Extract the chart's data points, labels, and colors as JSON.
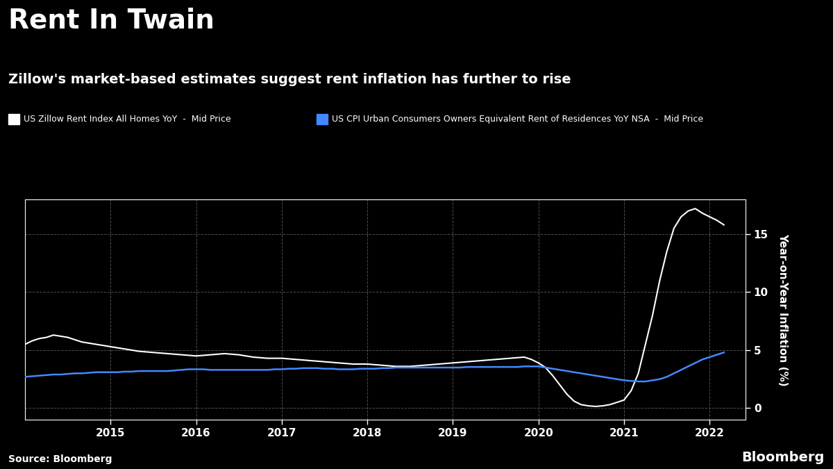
{
  "title": "Rent In Twain",
  "subtitle": "Zillow's market-based estimates suggest rent inflation has further to rise",
  "source": "Source: Bloomberg",
  "bloomberg_label": "Bloomberg",
  "ylabel": "Year-on-Year Inflation (%)",
  "legend_zillow": "US Zillow Rent Index All Homes YoY  -  Mid Price",
  "legend_cpi": "US CPI Urban Consumers Owners Equivalent Rent of Residences YoY NSA  -  Mid Price",
  "bg_color": "#000000",
  "text_color": "#ffffff",
  "grid_color": "#555555",
  "zillow_color": "#ffffff",
  "cpi_color": "#4488ff",
  "ylim": [
    -1,
    18
  ],
  "yticks": [
    0,
    5,
    10,
    15
  ],
  "zillow_x": [
    2014.0,
    2014.083,
    2014.167,
    2014.25,
    2014.333,
    2014.417,
    2014.5,
    2014.583,
    2014.667,
    2014.75,
    2014.833,
    2014.917,
    2015.0,
    2015.083,
    2015.167,
    2015.25,
    2015.333,
    2015.417,
    2015.5,
    2015.583,
    2015.667,
    2015.75,
    2015.833,
    2015.917,
    2016.0,
    2016.083,
    2016.167,
    2016.25,
    2016.333,
    2016.417,
    2016.5,
    2016.583,
    2016.667,
    2016.75,
    2016.833,
    2016.917,
    2017.0,
    2017.083,
    2017.167,
    2017.25,
    2017.333,
    2017.417,
    2017.5,
    2017.583,
    2017.667,
    2017.75,
    2017.833,
    2017.917,
    2018.0,
    2018.083,
    2018.167,
    2018.25,
    2018.333,
    2018.417,
    2018.5,
    2018.583,
    2018.667,
    2018.75,
    2018.833,
    2018.917,
    2019.0,
    2019.083,
    2019.167,
    2019.25,
    2019.333,
    2019.417,
    2019.5,
    2019.583,
    2019.667,
    2019.75,
    2019.833,
    2019.917,
    2020.0,
    2020.083,
    2020.167,
    2020.25,
    2020.333,
    2020.417,
    2020.5,
    2020.583,
    2020.667,
    2020.75,
    2020.833,
    2020.917,
    2021.0,
    2021.083,
    2021.167,
    2021.25,
    2021.333,
    2021.417,
    2021.5,
    2021.583,
    2021.667,
    2021.75,
    2021.833,
    2021.917,
    2022.0,
    2022.083,
    2022.167
  ],
  "zillow_y": [
    5.5,
    5.8,
    6.0,
    6.1,
    6.3,
    6.2,
    6.1,
    5.9,
    5.7,
    5.6,
    5.5,
    5.4,
    5.3,
    5.2,
    5.1,
    5.0,
    4.9,
    4.85,
    4.8,
    4.75,
    4.7,
    4.65,
    4.6,
    4.55,
    4.5,
    4.55,
    4.6,
    4.65,
    4.7,
    4.65,
    4.6,
    4.5,
    4.4,
    4.35,
    4.3,
    4.3,
    4.3,
    4.25,
    4.2,
    4.15,
    4.1,
    4.05,
    4.0,
    3.95,
    3.9,
    3.85,
    3.8,
    3.8,
    3.8,
    3.75,
    3.7,
    3.65,
    3.6,
    3.6,
    3.6,
    3.65,
    3.7,
    3.75,
    3.8,
    3.85,
    3.9,
    3.95,
    4.0,
    4.05,
    4.1,
    4.15,
    4.2,
    4.25,
    4.3,
    4.35,
    4.4,
    4.2,
    3.9,
    3.5,
    2.8,
    2.0,
    1.2,
    0.6,
    0.3,
    0.2,
    0.15,
    0.2,
    0.3,
    0.5,
    0.7,
    1.5,
    3.0,
    5.5,
    8.0,
    11.0,
    13.5,
    15.5,
    16.5,
    17.0,
    17.2,
    16.8,
    16.5,
    16.2,
    15.8
  ],
  "cpi_x": [
    2014.0,
    2014.083,
    2014.167,
    2014.25,
    2014.333,
    2014.417,
    2014.5,
    2014.583,
    2014.667,
    2014.75,
    2014.833,
    2014.917,
    2015.0,
    2015.083,
    2015.167,
    2015.25,
    2015.333,
    2015.417,
    2015.5,
    2015.583,
    2015.667,
    2015.75,
    2015.833,
    2015.917,
    2016.0,
    2016.083,
    2016.167,
    2016.25,
    2016.333,
    2016.417,
    2016.5,
    2016.583,
    2016.667,
    2016.75,
    2016.833,
    2016.917,
    2017.0,
    2017.083,
    2017.167,
    2017.25,
    2017.333,
    2017.417,
    2017.5,
    2017.583,
    2017.667,
    2017.75,
    2017.833,
    2017.917,
    2018.0,
    2018.083,
    2018.167,
    2018.25,
    2018.333,
    2018.417,
    2018.5,
    2018.583,
    2018.667,
    2018.75,
    2018.833,
    2018.917,
    2019.0,
    2019.083,
    2019.167,
    2019.25,
    2019.333,
    2019.417,
    2019.5,
    2019.583,
    2019.667,
    2019.75,
    2019.833,
    2019.917,
    2020.0,
    2020.083,
    2020.167,
    2020.25,
    2020.333,
    2020.417,
    2020.5,
    2020.583,
    2020.667,
    2020.75,
    2020.833,
    2020.917,
    2021.0,
    2021.083,
    2021.167,
    2021.25,
    2021.333,
    2021.417,
    2021.5,
    2021.583,
    2021.667,
    2021.75,
    2021.833,
    2021.917,
    2022.0,
    2022.083,
    2022.167
  ],
  "cpi_y": [
    2.7,
    2.75,
    2.8,
    2.85,
    2.9,
    2.9,
    2.95,
    3.0,
    3.0,
    3.05,
    3.1,
    3.1,
    3.1,
    3.1,
    3.15,
    3.15,
    3.2,
    3.2,
    3.2,
    3.2,
    3.2,
    3.25,
    3.3,
    3.35,
    3.35,
    3.35,
    3.3,
    3.3,
    3.3,
    3.3,
    3.3,
    3.3,
    3.3,
    3.3,
    3.3,
    3.35,
    3.35,
    3.4,
    3.4,
    3.45,
    3.45,
    3.45,
    3.4,
    3.4,
    3.35,
    3.35,
    3.35,
    3.4,
    3.4,
    3.4,
    3.45,
    3.45,
    3.5,
    3.5,
    3.5,
    3.5,
    3.5,
    3.5,
    3.5,
    3.5,
    3.5,
    3.5,
    3.55,
    3.55,
    3.55,
    3.55,
    3.55,
    3.55,
    3.55,
    3.55,
    3.6,
    3.6,
    3.6,
    3.5,
    3.4,
    3.3,
    3.2,
    3.1,
    3.0,
    2.9,
    2.8,
    2.7,
    2.6,
    2.5,
    2.4,
    2.35,
    2.3,
    2.3,
    2.4,
    2.5,
    2.7,
    3.0,
    3.3,
    3.6,
    3.9,
    4.2,
    4.4,
    4.6,
    4.8
  ],
  "xlim": [
    2014.0,
    2022.42
  ],
  "xticks": [
    2015,
    2016,
    2017,
    2018,
    2019,
    2020,
    2021,
    2022
  ]
}
